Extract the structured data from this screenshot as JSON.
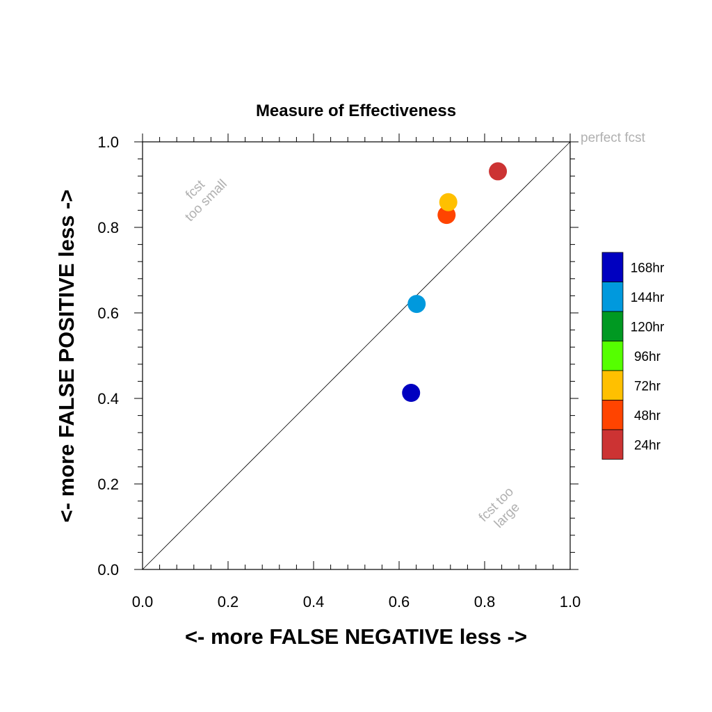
{
  "chart_data": {
    "type": "scatter",
    "title": "Measure of Effectiveness",
    "xlabel": "<- more   FALSE NEGATIVE   less ->",
    "ylabel": "<- more   FALSE POSITIVE   less ->",
    "xlim": [
      0.0,
      1.0
    ],
    "ylim": [
      0.0,
      1.0
    ],
    "xticks": [
      "0.0",
      "0.2",
      "0.4",
      "0.6",
      "0.8",
      "1.0"
    ],
    "yticks": [
      "0.0",
      "0.2",
      "0.4",
      "0.6",
      "0.8",
      "1.0"
    ],
    "grid": false,
    "diagonal": true,
    "annotations": {
      "perfect": "perfect fcst",
      "too_small_1": "fcst",
      "too_small_2": "too small",
      "too_large_1": "fcst too",
      "too_large_2": "large"
    },
    "points": [
      {
        "label": "168hr",
        "x": 0.628,
        "y": 0.413,
        "color": "#0000c0"
      },
      {
        "label": "144hr",
        "x": 0.641,
        "y": 0.621,
        "color": "#0099dd"
      },
      {
        "label": "48hr",
        "x": 0.711,
        "y": 0.829,
        "color": "#ff4400"
      },
      {
        "label": "72hr",
        "x": 0.715,
        "y": 0.859,
        "color": "#ffc000"
      },
      {
        "label": "24hr",
        "x": 0.831,
        "y": 0.931,
        "color": "#cc3333"
      }
    ],
    "legend": {
      "position": "right",
      "items": [
        {
          "label": "168hr",
          "color": "#0000c0"
        },
        {
          "label": "144hr",
          "color": "#0099dd"
        },
        {
          "label": "120hr",
          "color": "#009922"
        },
        {
          "label": "96hr",
          "color": "#55ff00"
        },
        {
          "label": "72hr",
          "color": "#ffc000"
        },
        {
          "label": "48hr",
          "color": "#ff4400"
        },
        {
          "label": "24hr",
          "color": "#cc3333"
        }
      ]
    }
  }
}
